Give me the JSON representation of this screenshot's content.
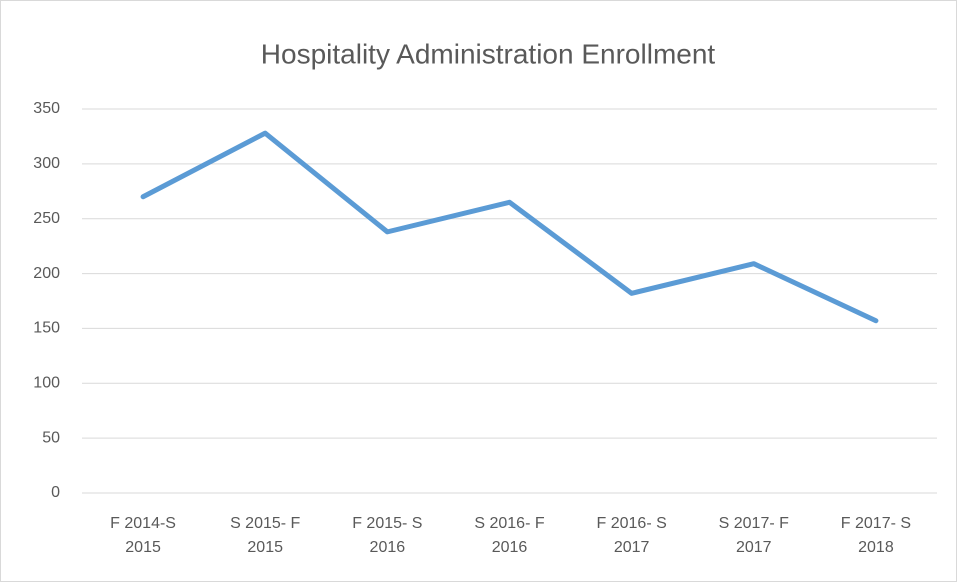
{
  "chart_data": {
    "type": "line",
    "title": "Hospitality Administration Enrollment",
    "categories": [
      "F 2014-S 2015",
      "S 2015- F 2015",
      "F 2015- S 2016",
      "S 2016- F 2016",
      "F 2016- S 2017",
      "S 2017- F 2017",
      "F 2017- S 2018"
    ],
    "values": [
      270,
      328,
      238,
      265,
      182,
      209,
      157
    ],
    "color": "#5b9bd5",
    "ylim": [
      0,
      350
    ],
    "yticks": [
      0,
      50,
      100,
      150,
      200,
      250,
      300,
      350
    ],
    "grid": true
  }
}
